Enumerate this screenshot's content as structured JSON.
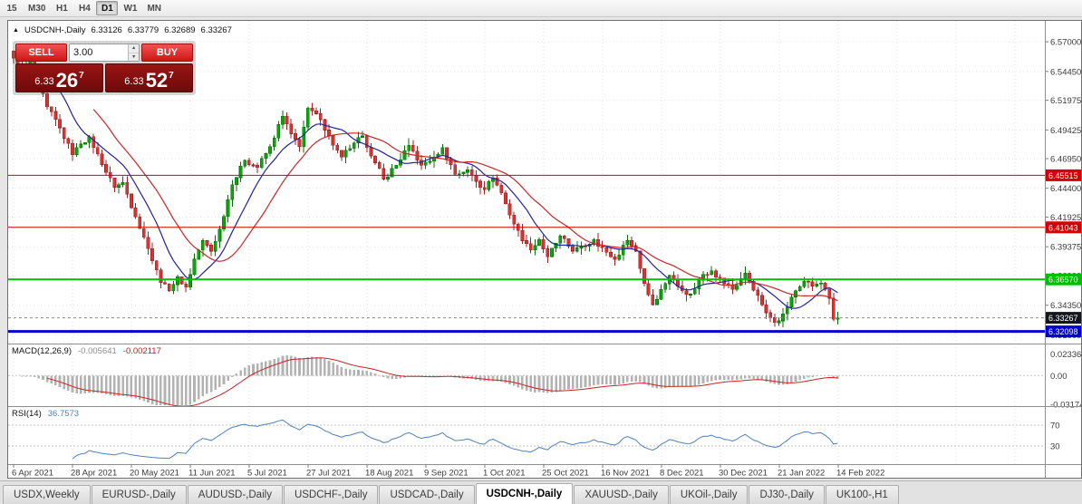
{
  "icons": {
    "collapse": "▲",
    "spin_up": "▴",
    "spin_down": "▾"
  },
  "toolbar": {
    "periods": [
      {
        "label": "15"
      },
      {
        "label": "M30"
      },
      {
        "label": "H1"
      },
      {
        "label": "H4"
      },
      {
        "label": "D1",
        "active": true
      },
      {
        "label": "W1"
      },
      {
        "label": "MN"
      }
    ]
  },
  "symbol_header": {
    "title": "USDCNH-,Daily",
    "open": "6.33126",
    "high": "6.33779",
    "low": "6.32689",
    "close": "6.33267"
  },
  "trade_widget": {
    "sell_label": "SELL",
    "buy_label": "BUY",
    "lot_size": "3.00",
    "sell_price": {
      "big_figure": "6.33",
      "pips": "26",
      "pipette": "7"
    },
    "buy_price": {
      "big_figure": "6.33",
      "pips": "52",
      "pipette": "7"
    }
  },
  "chart_data": {
    "type": "candlestick",
    "symbol": "USDCNH-",
    "timeframe": "Daily",
    "num_candles": 197,
    "last_candle": {
      "open": 6.33126,
      "high": 6.33779,
      "low": 6.32689,
      "close": 6.33267
    },
    "anchors": [
      [
        0,
        6.556
      ],
      [
        2,
        6.548
      ],
      [
        4,
        6.553
      ],
      [
        6,
        6.533
      ],
      [
        8,
        6.514
      ],
      [
        11,
        6.496
      ],
      [
        14,
        6.473
      ],
      [
        16,
        6.482
      ],
      [
        18,
        6.4885
      ],
      [
        21,
        6.4645
      ],
      [
        24,
        6.445
      ],
      [
        26,
        6.449
      ],
      [
        29,
        6.4195
      ],
      [
        32,
        6.392
      ],
      [
        35,
        6.363
      ],
      [
        37,
        6.356
      ],
      [
        39,
        6.368
      ],
      [
        41,
        6.359
      ],
      [
        43,
        6.383
      ],
      [
        45,
        6.399
      ],
      [
        47,
        6.39
      ],
      [
        49,
        6.409
      ],
      [
        52,
        6.447
      ],
      [
        55,
        6.468
      ],
      [
        58,
        6.462
      ],
      [
        61,
        6.48
      ],
      [
        64,
        6.506
      ],
      [
        66,
        6.491
      ],
      [
        68,
        6.48
      ],
      [
        70,
        6.513
      ],
      [
        73,
        6.503
      ],
      [
        76,
        6.481
      ],
      [
        78,
        6.471
      ],
      [
        81,
        6.483
      ],
      [
        83,
        6.489
      ],
      [
        86,
        6.466
      ],
      [
        88,
        6.452
      ],
      [
        91,
        6.464
      ],
      [
        94,
        6.481
      ],
      [
        97,
        6.464
      ],
      [
        100,
        6.471
      ],
      [
        102,
        6.479
      ],
      [
        105,
        6.456
      ],
      [
        108,
        6.46
      ],
      [
        110,
        6.45
      ],
      [
        112,
        6.443
      ],
      [
        114,
        6.453
      ],
      [
        116,
        6.44
      ],
      [
        118,
        6.421
      ],
      [
        121,
        6.399
      ],
      [
        123,
        6.391
      ],
      [
        125,
        6.4
      ],
      [
        127,
        6.385
      ],
      [
        130,
        6.403
      ],
      [
        133,
        6.39
      ],
      [
        136,
        6.394
      ],
      [
        138,
        6.4
      ],
      [
        141,
        6.389
      ],
      [
        143,
        6.383
      ],
      [
        146,
        6.399
      ],
      [
        148,
        6.39
      ],
      [
        150,
        6.362
      ],
      [
        152,
        6.344
      ],
      [
        154,
        6.357
      ],
      [
        156,
        6.369
      ],
      [
        159,
        6.356
      ],
      [
        161,
        6.353
      ],
      [
        164,
        6.37
      ],
      [
        166,
        6.373
      ],
      [
        169,
        6.362
      ],
      [
        171,
        6.357
      ],
      [
        174,
        6.371
      ],
      [
        177,
        6.352
      ],
      [
        179,
        6.337
      ],
      [
        181,
        6.3285
      ],
      [
        183,
        6.336
      ],
      [
        186,
        6.356
      ],
      [
        188,
        6.364
      ],
      [
        190,
        6.36
      ],
      [
        192,
        6.3625
      ],
      [
        194,
        6.3495
      ],
      [
        195,
        6.3315
      ],
      [
        196,
        6.33267
      ]
    ],
    "price_range": [
      6.3105,
      6.588
    ],
    "price_ticks": [
      {
        "label": "6.57000",
        "value": 6.57
      },
      {
        "label": "6.54450",
        "value": 6.5445
      },
      {
        "label": "6.51975",
        "value": 6.51975
      },
      {
        "label": "6.49425",
        "value": 6.49425
      },
      {
        "label": "6.46950",
        "value": 6.4695
      },
      {
        "label": "6.44400",
        "value": 6.444
      },
      {
        "label": "6.41925",
        "value": 6.41925
      },
      {
        "label": "6.39375",
        "value": 6.39375
      },
      {
        "label": "6.36900",
        "value": 6.369
      },
      {
        "label": "6.34350",
        "value": 6.3435
      },
      {
        "label": "6.31800",
        "value": 6.318
      }
    ],
    "levels": [
      {
        "label": "6.45515",
        "value": 6.45515,
        "color": "#d40000",
        "width": 1
      },
      {
        "label": "6.41043",
        "value": 6.41043,
        "color": "#d40000",
        "width": 1
      },
      {
        "label": "6.36570",
        "value": 6.3657,
        "color": "#00be00",
        "width": 2
      },
      {
        "label": "6.32098",
        "value": 6.32098,
        "color": "#0000d2",
        "width": 3
      }
    ],
    "current_price": {
      "label": "6.33267",
      "value": 6.33267,
      "badge_color": "#15151d"
    },
    "x_labels": [
      "6 Apr 2021",
      "28 Apr 2021",
      "20 May 2021",
      "11 Jun 2021",
      "5 Jul 2021",
      "27 Jul 2021",
      "18 Aug 2021",
      "9 Sep 2021",
      "1 Oct 2021",
      "25 Oct 2021",
      "16 Nov 2021",
      "8 Dec 2021",
      "30 Dec 2021",
      "21 Jan 2022",
      "14 Feb 2022"
    ],
    "macd": {
      "label": "MACD(12,26,9)",
      "value_main": "-0.005641",
      "value_signal": "-0.002117",
      "params": [
        12,
        26,
        9
      ],
      "range": [
        -0.0335,
        0.034
      ],
      "axis": [
        {
          "label": "0.023365",
          "value": 0.02336
        },
        {
          "label": "0.00",
          "value": 0
        },
        {
          "label": "-0.031740",
          "value": -0.03174
        }
      ]
    },
    "rsi": {
      "label": "RSI(14)",
      "value": "36.7573",
      "period": 14,
      "range": [
        -5,
        105
      ],
      "levels": [
        70,
        30
      ]
    },
    "colors": {
      "up": "#0ca50c",
      "up_edge": "#067006",
      "down": "#d83434",
      "down_edge": "#a32222",
      "ma_fast": "#22229e",
      "ma_slow": "#c62828",
      "macd_hist": "#b3b3b3",
      "macd_signal": "#cc2222",
      "rsi_line": "#4f81bd",
      "grid": "#e2e2e2",
      "axis_text": "#3a3a3a"
    }
  },
  "tabs": [
    {
      "label": "USDX,Weekly"
    },
    {
      "label": "EURUSD-,Daily"
    },
    {
      "label": "AUDUSD-,Daily"
    },
    {
      "label": "USDCHF-,Daily"
    },
    {
      "label": "USDCAD-,Daily"
    },
    {
      "label": "USDCNH-,Daily",
      "active": true
    },
    {
      "label": "XAUUSD-,Daily"
    },
    {
      "label": "UKOil-,Daily"
    },
    {
      "label": "DJ30-,Daily"
    },
    {
      "label": "UK100-,H1"
    }
  ]
}
